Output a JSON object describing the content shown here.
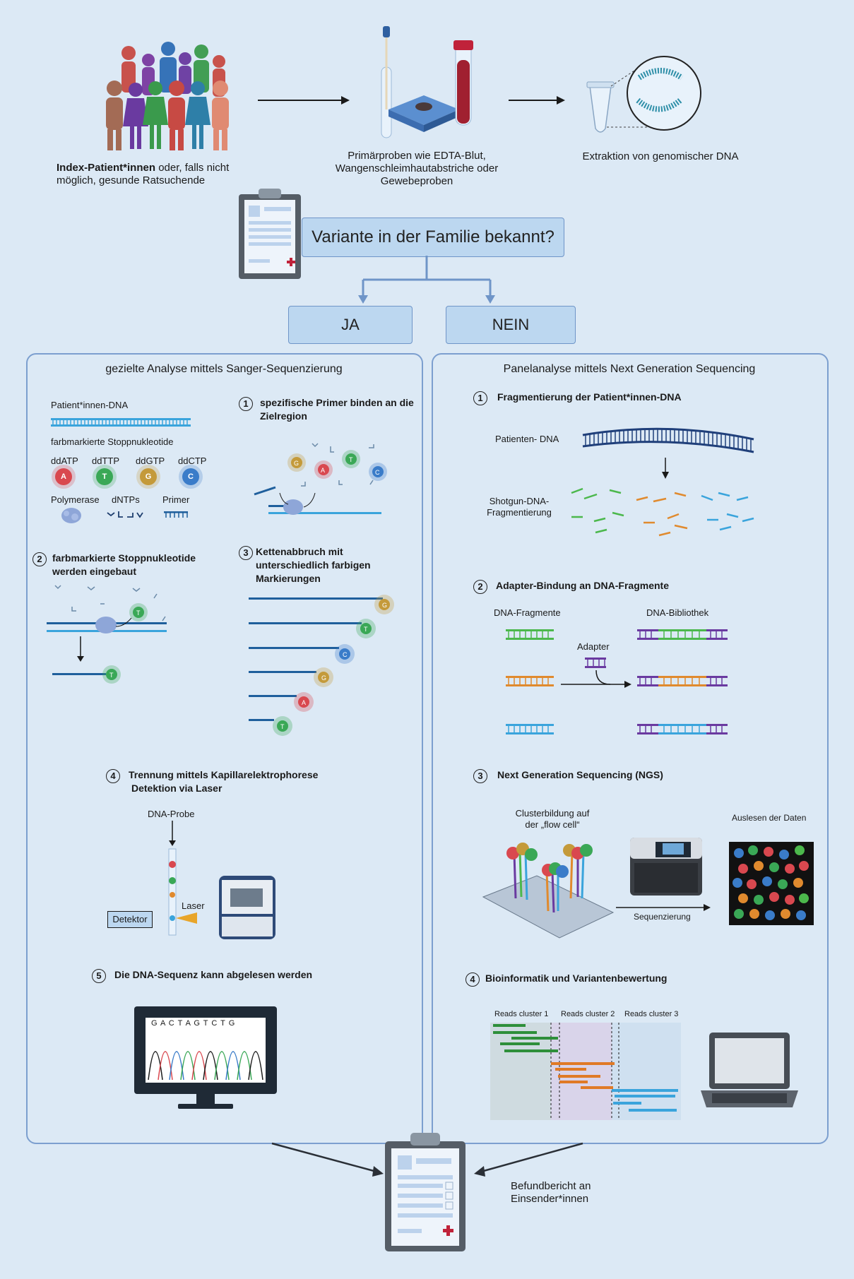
{
  "top": {
    "patients_label_bold": "Index-Patient*innen",
    "patients_label_rest_1": " oder, falls nicht",
    "patients_label_rest_2": "möglich, gesunde Ratsuchende",
    "samples_label_1": "Primärproben wie EDTA-Blut,",
    "samples_label_2": "Wangenschleimhautabstriche oder",
    "samples_label_3": "Gewebeproben",
    "extraction_label": "Extraktion von genomischer DNA"
  },
  "decision": {
    "question": "Variante in der Familie bekannt?",
    "yes": "JA",
    "no": "NEIN"
  },
  "sanger": {
    "title": "gezielte Analyse mittels Sanger-Sequenzierung",
    "patient_dna": "Patient*innen-DNA",
    "stop_nucleotides": "farbmarkierte Stoppnukleotide",
    "ddntp": [
      "ddATP",
      "ddTTP",
      "ddGTP",
      "ddCTP"
    ],
    "letters": [
      "A",
      "T",
      "G",
      "C"
    ],
    "polymerase": "Polymerase",
    "dntps": "dNTPs",
    "primer": "Primer",
    "step1_num": "1",
    "step1": "spezifische Primer binden an die Zielregion",
    "step2_num": "2",
    "step2": "farbmarkierte Stoppnukleotide werden eingebaut",
    "step3_num": "3",
    "step3": "Kettenabbruch mit unterschiedlich farbigen Markierungen",
    "step4_num": "4",
    "step4_line1": "Trennung mittels Kapillarelektrophorese",
    "step4_line2": "Detektion via Laser",
    "dna_probe": "DNA-Probe",
    "laser": "Laser",
    "detector": "Detektor",
    "step5_num": "5",
    "step5": "Die DNA-Sequenz kann abgelesen werden",
    "sequence": "G A C T A G T C T G"
  },
  "ngs": {
    "title": "Panelanalyse mittels Next Generation Sequencing",
    "step1_num": "1",
    "step1": "Fragmentierung der Patient*innen-DNA",
    "patient_dna": "Patienten- DNA",
    "shotgun_1": "Shotgun-DNA-",
    "shotgun_2": "Fragmentierung",
    "step2_num": "2",
    "step2": "Adapter-Bindung an DNA-Fragmente",
    "fragments": "DNA-Fragmente",
    "library": "DNA-Bibliothek",
    "adapter": "Adapter",
    "step3_num": "3",
    "step3": "Next Generation Sequencing (NGS)",
    "cluster_1": "Clusterbildung auf",
    "cluster_2": "der „flow cell“",
    "readout": "Auslesen der Daten",
    "sequencing": "Sequenzierung",
    "step4_num": "4",
    "step4": "Bioinformatik und Variantenbewertung",
    "reads": [
      "Reads cluster 1",
      "Reads cluster 2",
      "Reads cluster 3"
    ]
  },
  "bottom": {
    "report_1": "Befundbericht an",
    "report_2": "Einsender*innen"
  },
  "colors": {
    "A": "#d9484f",
    "T": "#3aa856",
    "G": "#c49a3a",
    "C": "#3a7cc9",
    "dna": "#1f5f9c",
    "green": "#4cb84c",
    "orange": "#e08a2e",
    "blue": "#3aa4dc",
    "purple": "#6a3aa0"
  }
}
